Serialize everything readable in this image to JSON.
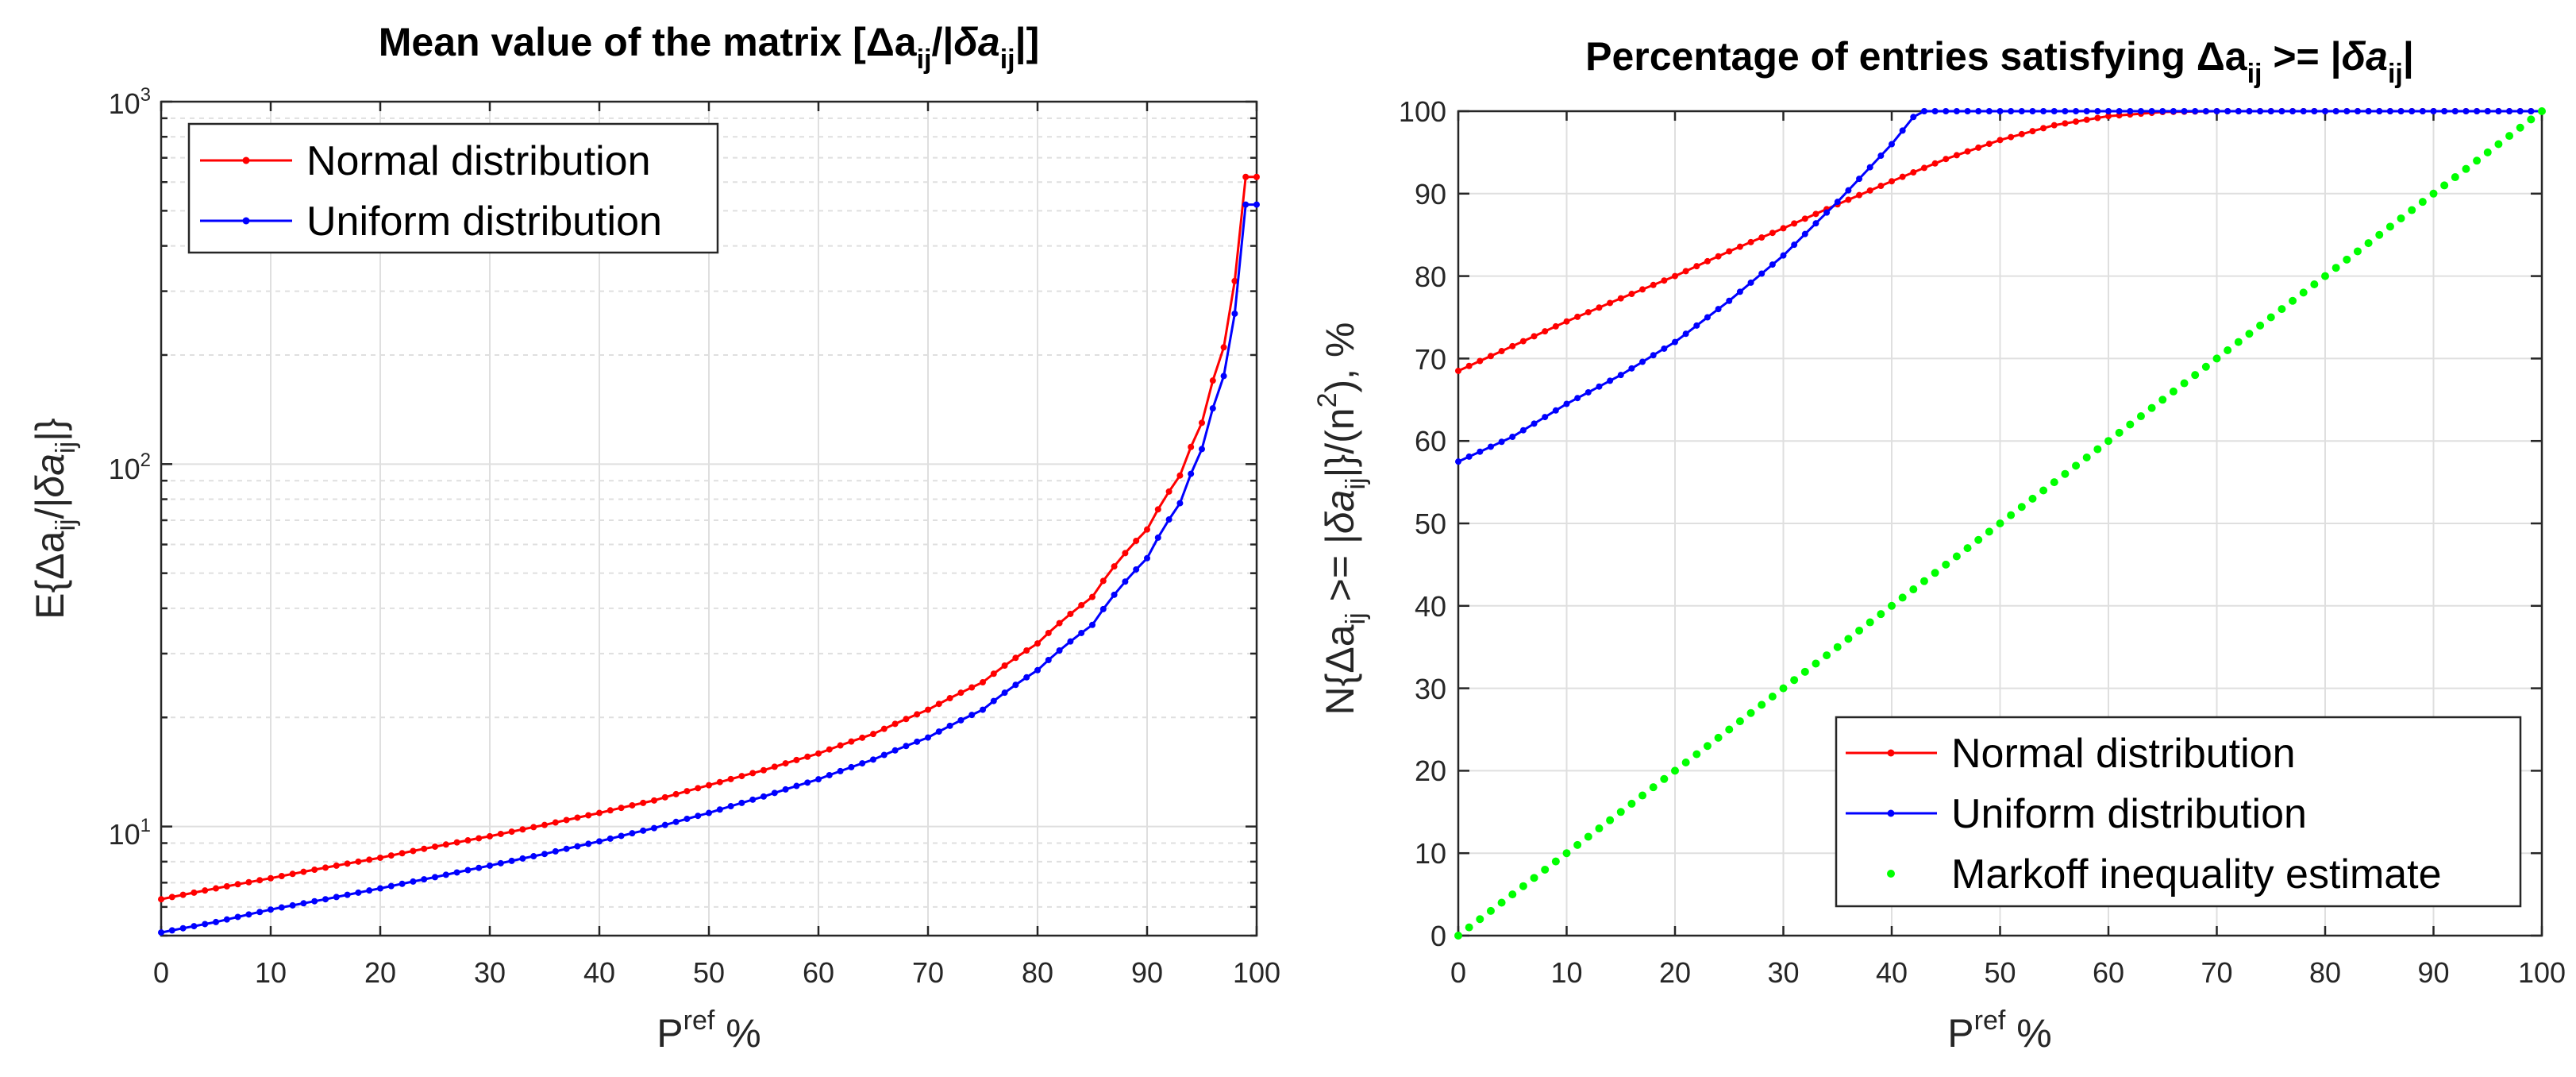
{
  "chart_data": [
    {
      "type": "line",
      "title": "Mean value of the matrix [Δa_ij/|δa_ij|]",
      "title_parts": {
        "prefix": "Mean value of the matrix [",
        "delta": "Δa",
        "sub": "ij",
        "mid": "/|",
        "delta2": "δa",
        "sub2": "ij",
        "suffix": "|]"
      },
      "xlabel": {
        "base": "P",
        "sup": "ref",
        "rest": " %"
      },
      "ylabel": {
        "prefix": "E{",
        "d1": "Δa",
        "s1": "ij",
        "mid": "/|",
        "d2": "δa",
        "s2": "ij",
        "suffix": "|}"
      },
      "yscale": "log",
      "xlim": [
        0,
        100
      ],
      "ylim": [
        5,
        1000
      ],
      "x_ticks": [
        "0",
        "10",
        "20",
        "30",
        "40",
        "50",
        "60",
        "70",
        "80",
        "90",
        "100"
      ],
      "y_ticks": [
        {
          "base": "10",
          "sup": "1"
        },
        {
          "base": "10",
          "sup": "2"
        },
        {
          "base": "10",
          "sup": "3"
        }
      ],
      "legend_position": "top-left",
      "series": [
        {
          "name": "Normal distribution",
          "color": "#ff0000",
          "x": [
            0,
            5,
            10,
            15,
            20,
            25,
            30,
            35,
            40,
            45,
            50,
            55,
            60,
            65,
            70,
            75,
            80,
            85,
            90,
            93,
            95,
            97,
            98,
            99,
            100
          ],
          "y": [
            6.3,
            6.75,
            7.2,
            7.7,
            8.2,
            8.8,
            9.4,
            10.1,
            10.9,
            11.8,
            13,
            14.3,
            15.9,
            18,
            21,
            25,
            32,
            43,
            66,
            93,
            130,
            210,
            320,
            620,
            620
          ]
        },
        {
          "name": "Uniform distribution",
          "color": "#0000ff",
          "x": [
            0,
            5,
            10,
            15,
            20,
            25,
            30,
            35,
            40,
            45,
            50,
            55,
            60,
            65,
            70,
            75,
            80,
            85,
            90,
            93,
            95,
            97,
            98,
            99,
            100
          ],
          "y": [
            5.1,
            5.45,
            5.9,
            6.3,
            6.75,
            7.25,
            7.8,
            8.4,
            9.1,
            9.9,
            10.9,
            12.1,
            13.5,
            15.3,
            17.6,
            21,
            27,
            36,
            55,
            78,
            110,
            175,
            260,
            520,
            520
          ]
        }
      ]
    },
    {
      "type": "line",
      "title": "Percentage of entries satisfying Δa_ij >= |δa_ij|",
      "title_parts": {
        "prefix": "Percentage of entries satisfying ",
        "delta": "Δa",
        "sub": "ij",
        "mid": " >= |",
        "delta2": "δa",
        "sub2": "ij",
        "suffix": "|"
      },
      "xlabel": {
        "base": "P",
        "sup": "ref",
        "rest": " %"
      },
      "ylabel": {
        "prefix": "N{",
        "d1": "Δa",
        "s1": "ij",
        "mid": " >= |",
        "d2": "δa",
        "s2": "ij",
        "mid2": "|}/(n",
        "sup": "2",
        "suffix": "), %"
      },
      "yscale": "linear",
      "xlim": [
        0,
        100
      ],
      "ylim": [
        0,
        100
      ],
      "x_ticks": [
        "0",
        "10",
        "20",
        "30",
        "40",
        "50",
        "60",
        "70",
        "80",
        "90",
        "100"
      ],
      "y_ticks": [
        "0",
        "10",
        "20",
        "30",
        "40",
        "50",
        "60",
        "70",
        "80",
        "90",
        "100"
      ],
      "legend_position": "bottom-right",
      "series": [
        {
          "name": "Normal distribution",
          "color": "#ff0000",
          "x": [
            0,
            5,
            10,
            15,
            20,
            25,
            30,
            35,
            40,
            45,
            50,
            55,
            60,
            65,
            70,
            75,
            80,
            85,
            90,
            95,
            100
          ],
          "y": [
            68.5,
            71.5,
            74.5,
            77.3,
            80,
            83,
            85.8,
            88.7,
            91.5,
            94.2,
            96.5,
            98.3,
            99.4,
            99.9,
            100,
            100,
            100,
            100,
            100,
            100,
            100
          ]
        },
        {
          "name": "Uniform distribution",
          "color": "#0000ff",
          "x": [
            0,
            5,
            10,
            15,
            20,
            25,
            30,
            35,
            40,
            42,
            43,
            45,
            50,
            55,
            60,
            65,
            70,
            75,
            80,
            85,
            90,
            95,
            100
          ],
          "y": [
            57.5,
            60.5,
            64.5,
            68,
            72,
            77,
            82.5,
            89,
            96,
            99.3,
            100,
            100,
            100,
            100,
            100,
            100,
            100,
            100,
            100,
            100,
            100,
            100,
            100
          ]
        },
        {
          "name": "Markoff inequality estimate",
          "color": "#00ff00",
          "style": "dots",
          "x": [
            0,
            100
          ],
          "y": [
            0,
            100
          ]
        }
      ]
    }
  ]
}
